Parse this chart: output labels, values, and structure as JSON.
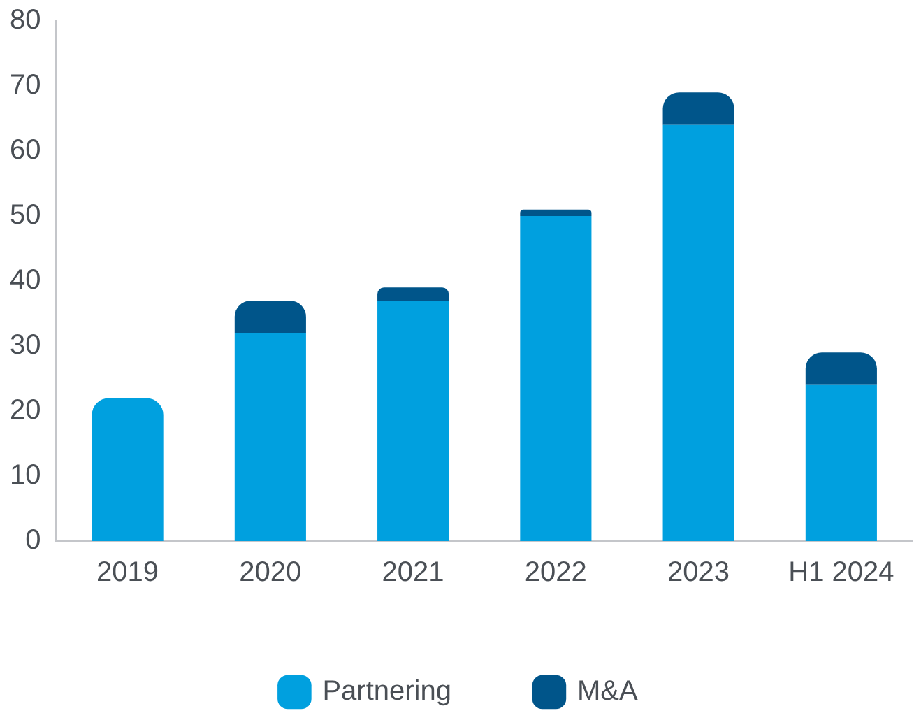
{
  "chart_data": {
    "type": "bar",
    "stacked": true,
    "categories": [
      "2019",
      "2020",
      "2021",
      "2022",
      "2023",
      "H1 2024"
    ],
    "series": [
      {
        "name": "Partnering",
        "color": "#00a0df",
        "values": [
          22,
          32,
          37,
          50,
          64,
          24
        ]
      },
      {
        "name": "M&A",
        "color": "#00558a",
        "values": [
          0,
          5,
          2,
          1,
          5,
          5
        ]
      }
    ],
    "ylim": [
      0,
      80
    ],
    "yticks": [
      0,
      10,
      20,
      30,
      40,
      50,
      60,
      70,
      80
    ],
    "grid": false,
    "legend": "bottom"
  }
}
